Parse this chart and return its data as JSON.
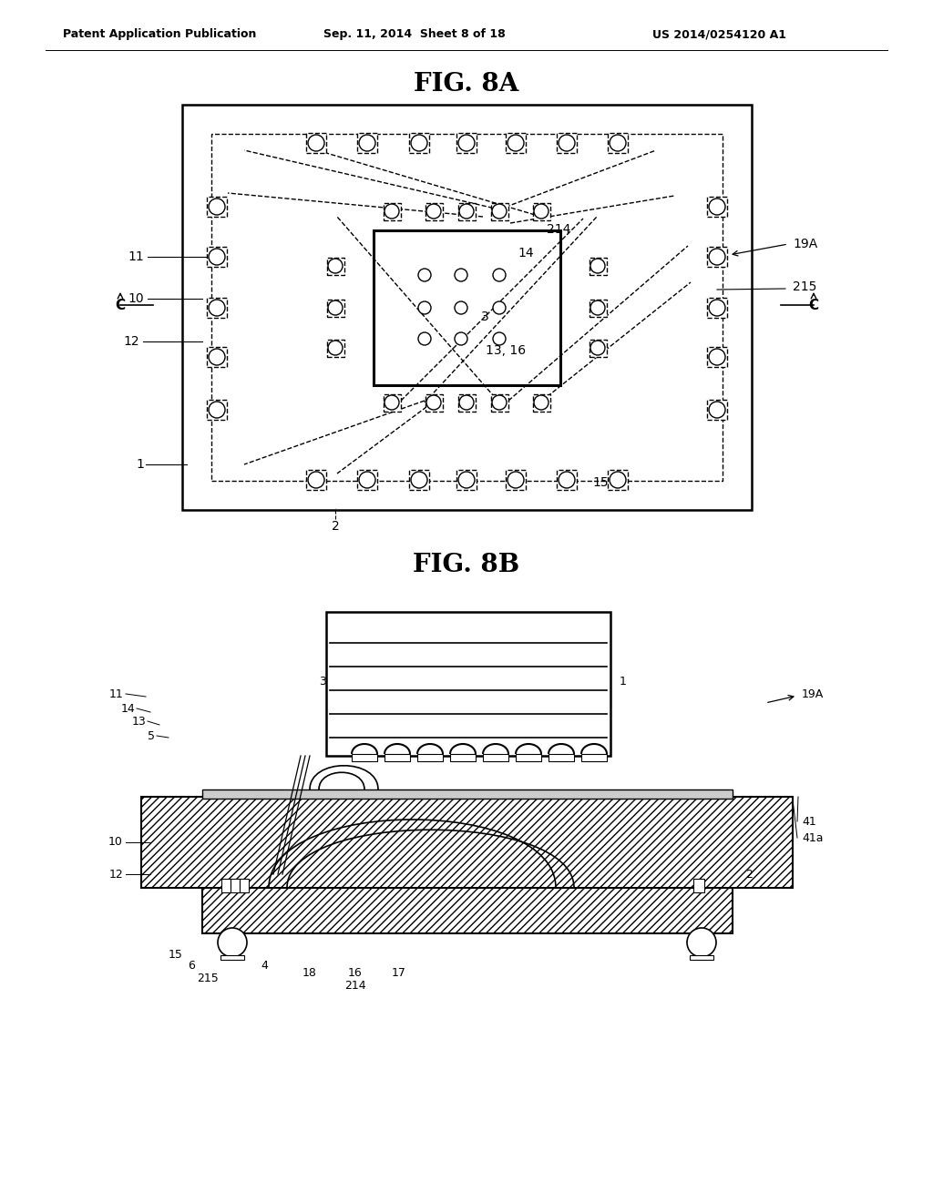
{
  "bg_color": "#ffffff",
  "header_left": "Patent Application Publication",
  "header_center": "Sep. 11, 2014  Sheet 8 of 18",
  "header_right": "US 2014/0254120 A1",
  "fig8a_title": "FIG. 8A",
  "fig8b_title": "FIG. 8B",
  "line_color": "#000000"
}
